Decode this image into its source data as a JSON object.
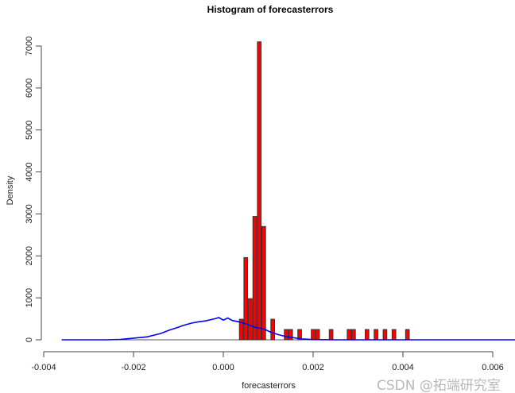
{
  "chart_data": {
    "type": "bar",
    "title": "Histogram of forecasterrors",
    "xlabel": "forecasterrors",
    "ylabel": "Density",
    "xlim": [
      -0.004,
      0.006
    ],
    "ylim": [
      0,
      7000
    ],
    "xticks": [
      "-0.004",
      "-0.002",
      "0.000",
      "0.002",
      "0.004",
      "0.006"
    ],
    "xtick_values": [
      -0.004,
      -0.002,
      0,
      0.002,
      0.004,
      0.006
    ],
    "yticks": [
      "0",
      "1000",
      "2000",
      "3000",
      "4000",
      "5000",
      "6000",
      "7000"
    ],
    "ytick_values": [
      0,
      1000,
      2000,
      3000,
      4000,
      5000,
      6000,
      7000
    ],
    "bin_width": 0.0001,
    "bars": {
      "centers": [
        0.0004,
        0.0005,
        0.0006,
        0.0007,
        0.0008,
        0.0009,
        0.0011,
        0.0014,
        0.0015,
        0.0017,
        0.002,
        0.0021,
        0.0024,
        0.0028,
        0.0029,
        0.0032,
        0.0034,
        0.0036,
        0.0038,
        0.0041
      ],
      "values": [
        490,
        1960,
        980,
        2940,
        7100,
        2700,
        490,
        245,
        245,
        245,
        245,
        245,
        245,
        245,
        245,
        245,
        245,
        245,
        245,
        245
      ]
    },
    "density_line": {
      "x": [
        -0.0036,
        -0.0026,
        -0.0023,
        -0.002,
        -0.0017,
        -0.0014,
        -0.0012,
        -0.001,
        -0.0009,
        -0.0007,
        -0.00055,
        -0.0004,
        -0.0002,
        -0.0001,
        0.0,
        0.0001,
        0.0002,
        0.00034,
        0.0005,
        0.0007,
        0.0009,
        0.00104,
        0.0012,
        0.0014,
        0.00175,
        0.002,
        0.0025,
        0.0065
      ],
      "y": [
        0,
        0,
        10,
        40,
        70,
        150,
        230,
        300,
        340,
        400,
        430,
        450,
        500,
        530,
        470,
        520,
        460,
        430,
        380,
        300,
        260,
        190,
        130,
        75,
        20,
        5,
        0,
        0
      ]
    },
    "grid": false,
    "colors": {
      "bars": "#ff0000",
      "bar_border": "#333333",
      "density": "#0000ff"
    }
  },
  "watermark": "CSDN @拓端研究室"
}
